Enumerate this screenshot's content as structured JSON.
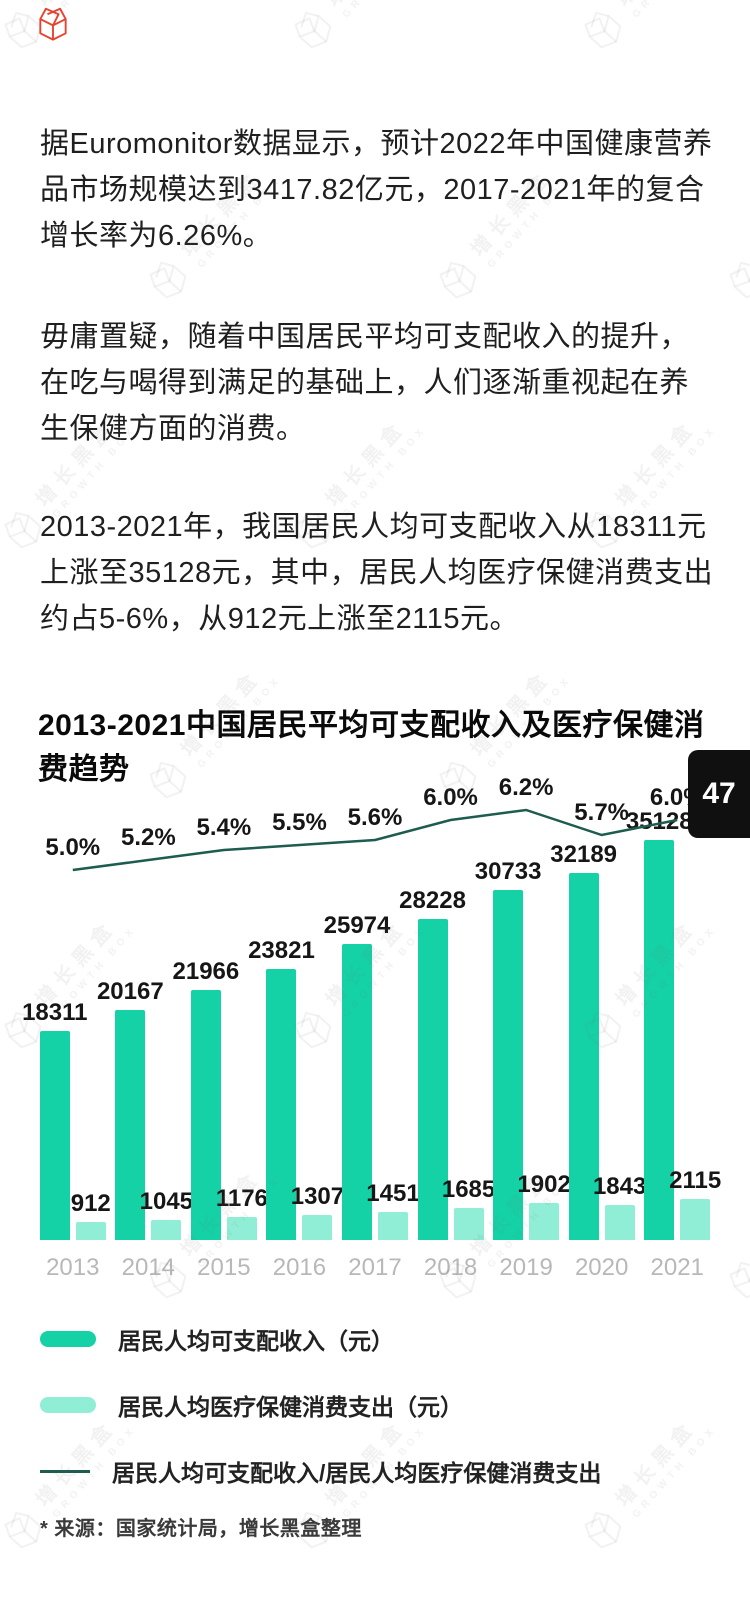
{
  "brand": {
    "name": "增长黑盒",
    "name_en": "GROWTH BOX"
  },
  "page": {
    "number": "47",
    "source_note": "* 来源：国家统计局，增长黑盒整理"
  },
  "paragraphs": [
    "据Euromonitor数据显示，预计2022年中国健康营养品市场规模达到3417.82亿元，2017-2021年的复合增长率为6.26%。",
    "毋庸置疑，随着中国居民平均可支配收入的提升，在吃与喝得到满足的基础上，人们逐渐重视起在养生保健方面的消费。",
    "2013-2021年，我国居民人均可支配收入从18311元上涨至35128元，其中，居民人均医疗保健消费支出约占5-6%，从912元上涨至2115元。"
  ],
  "chart_data": {
    "type": "bar",
    "subtype": "grouped bars with ratio line overlay",
    "title": "2013-2021中国居民平均可支配收入及医疗保健消费趋势",
    "categories": [
      "2013",
      "2014",
      "2015",
      "2016",
      "2017",
      "2018",
      "2019",
      "2020",
      "2021"
    ],
    "series": [
      {
        "name": "居民人均可支配收入（元）",
        "type": "bar",
        "color": "#14d2a6",
        "values": [
          18311,
          20167,
          21966,
          23821,
          25974,
          28228,
          30733,
          32189,
          35128
        ]
      },
      {
        "name": "居民人均医疗保健消费支出（元）",
        "type": "bar",
        "color": "#90eed6",
        "values": [
          912,
          1045,
          1176,
          1307,
          1451,
          1685,
          1902,
          1843,
          2115
        ]
      },
      {
        "name": "居民人均可支配收入/居民人均医疗保健消费支出",
        "type": "line",
        "color": "#1d5c4e",
        "values": [
          5.0,
          5.2,
          5.4,
          5.5,
          5.6,
          6.0,
          6.2,
          5.7,
          6.0
        ],
        "labels": [
          "5.0%",
          "5.2%",
          "5.4%",
          "5.5%",
          "5.6%",
          "6.0%",
          "6.2%",
          "5.7%",
          "6.0%"
        ]
      }
    ],
    "legend_position": "bottom",
    "grid": false,
    "xtick_color": "#b8b8b8",
    "value_labels_shown": true
  }
}
